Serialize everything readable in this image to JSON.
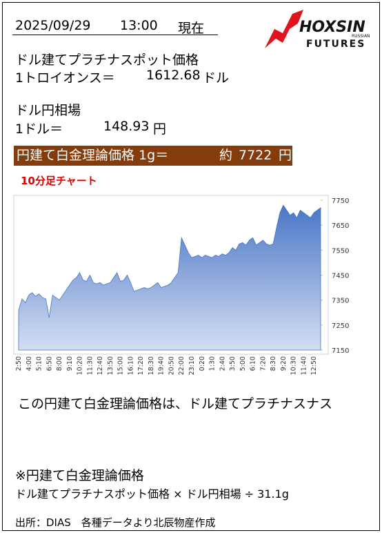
{
  "header": {
    "date": "2025/09/29",
    "time": "13:00",
    "status": "現在"
  },
  "logo": {
    "brand": "HOXSIN",
    "sub": "RUSSIAN",
    "futures": "FUTURES"
  },
  "platinum": {
    "label": "ドル建てプラチナスポット価格",
    "unit_label": "1トロイオンス＝",
    "price": 1612.68,
    "currency": "ドル"
  },
  "fx": {
    "label": "ドル円相場",
    "unit_label": "1ドル＝",
    "rate": 148.93,
    "currency": "円"
  },
  "banner": {
    "label": "円建て白金理論価格 1g＝",
    "prefix": "約",
    "price": 7722,
    "currency": "円"
  },
  "chart_data": {
    "type": "area",
    "title": "10分足チャート",
    "color": "#4472c4",
    "categories": [
      "2:50",
      null,
      null,
      "4:00",
      null,
      null,
      "5:10",
      null,
      null,
      "6:50",
      null,
      null,
      "8:00",
      null,
      null,
      "9:10",
      null,
      null,
      "10:20",
      null,
      null,
      "11:30",
      null,
      null,
      "12:40",
      null,
      null,
      "13:50",
      null,
      null,
      "15:00",
      null,
      null,
      "16:10",
      null,
      null,
      "17:20",
      null,
      null,
      "18:30",
      null,
      null,
      "19:40",
      null,
      null,
      "20:50",
      null,
      null,
      "22:00",
      null,
      null,
      "23:10",
      null,
      null,
      "0:20",
      null,
      null,
      "1:30",
      null,
      null,
      "2:40",
      null,
      null,
      "3:50",
      null,
      null,
      "5:00",
      null,
      null,
      "6:10",
      null,
      null,
      "7:20",
      null,
      null,
      "8:30",
      null,
      null,
      "9:20",
      null,
      null,
      "10:30",
      null,
      null,
      "11:40",
      null,
      null,
      "12:50",
      null,
      null
    ],
    "values": [
      7310,
      7355,
      7340,
      7370,
      7380,
      7365,
      7375,
      7360,
      7355,
      7280,
      7370,
      7360,
      7350,
      7370,
      7390,
      7410,
      7430,
      7440,
      7460,
      7430,
      7425,
      7450,
      7420,
      7415,
      7420,
      7410,
      7415,
      7420,
      7440,
      7460,
      7425,
      7430,
      7450,
      7420,
      7385,
      7390,
      7395,
      7400,
      7395,
      7400,
      7410,
      7420,
      7400,
      7405,
      7410,
      7420,
      7440,
      7460,
      7600,
      7570,
      7540,
      7520,
      7525,
      7530,
      7520,
      7530,
      7525,
      7520,
      7530,
      7525,
      7535,
      7530,
      7540,
      7560,
      7550,
      7575,
      7580,
      7570,
      7590,
      7600,
      7570,
      7580,
      7590,
      7575,
      7570,
      7575,
      7640,
      7700,
      7730,
      7710,
      7690,
      7700,
      7680,
      7710,
      7700,
      7690,
      7680,
      7700,
      7710,
      7720
    ],
    "ylim": [
      7150,
      7750
    ],
    "yticks": [
      7150,
      7250,
      7350,
      7450,
      7550,
      7650,
      7750
    ]
  },
  "note": {
    "lines": [
      "この円建て白金理論価格は、ドル建てプラチナスナス",
      "",
      ""
    ]
  },
  "formula": {
    "title": "※円建て白金理論価格",
    "expr": "ドル建てプラチナスポット価格 × ドル円相場 ÷ 31.1g"
  },
  "source": "出所：DIAS　各種データより北辰物産作成"
}
